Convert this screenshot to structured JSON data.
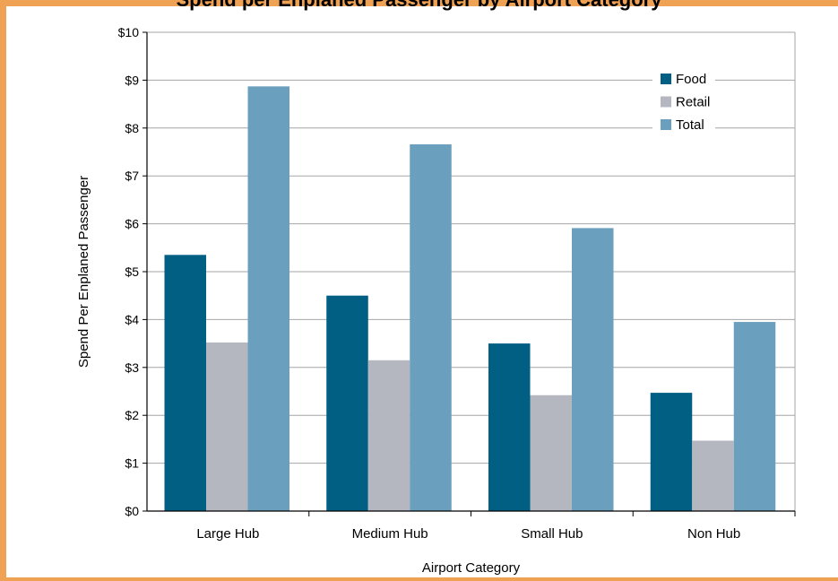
{
  "page": {
    "title": "Spend per Enplaned Passenger by Airport Category"
  },
  "colors": {
    "frame": "#f0a254",
    "food": "#005f83",
    "retail": "#b4b7c0",
    "total": "#6a9fbd",
    "grid": "#a6a6a6"
  },
  "chart_data": {
    "type": "bar",
    "title": "",
    "xlabel": "Airport Category",
    "ylabel": "Spend Per Enplaned Passenger",
    "categories": [
      "Large Hub",
      "Medium Hub",
      "Small Hub",
      "Non Hub"
    ],
    "series": [
      {
        "name": "Food",
        "color_key": "food",
        "values": [
          5.35,
          4.5,
          3.5,
          2.47
        ]
      },
      {
        "name": "Retail",
        "color_key": "retail",
        "values": [
          3.52,
          3.15,
          2.42,
          1.47
        ]
      },
      {
        "name": "Total",
        "color_key": "total",
        "values": [
          8.87,
          7.66,
          5.91,
          3.95
        ]
      }
    ],
    "ylim": [
      0,
      10
    ],
    "yticks": [
      0,
      1,
      2,
      3,
      4,
      5,
      6,
      7,
      8,
      9,
      10
    ],
    "ytick_labels": [
      "$0",
      "$1",
      "$2",
      "$3",
      "$4",
      "$5",
      "$6",
      "$7",
      "$8",
      "$9",
      "$10"
    ],
    "grid": true,
    "legend_position": "top-right"
  }
}
